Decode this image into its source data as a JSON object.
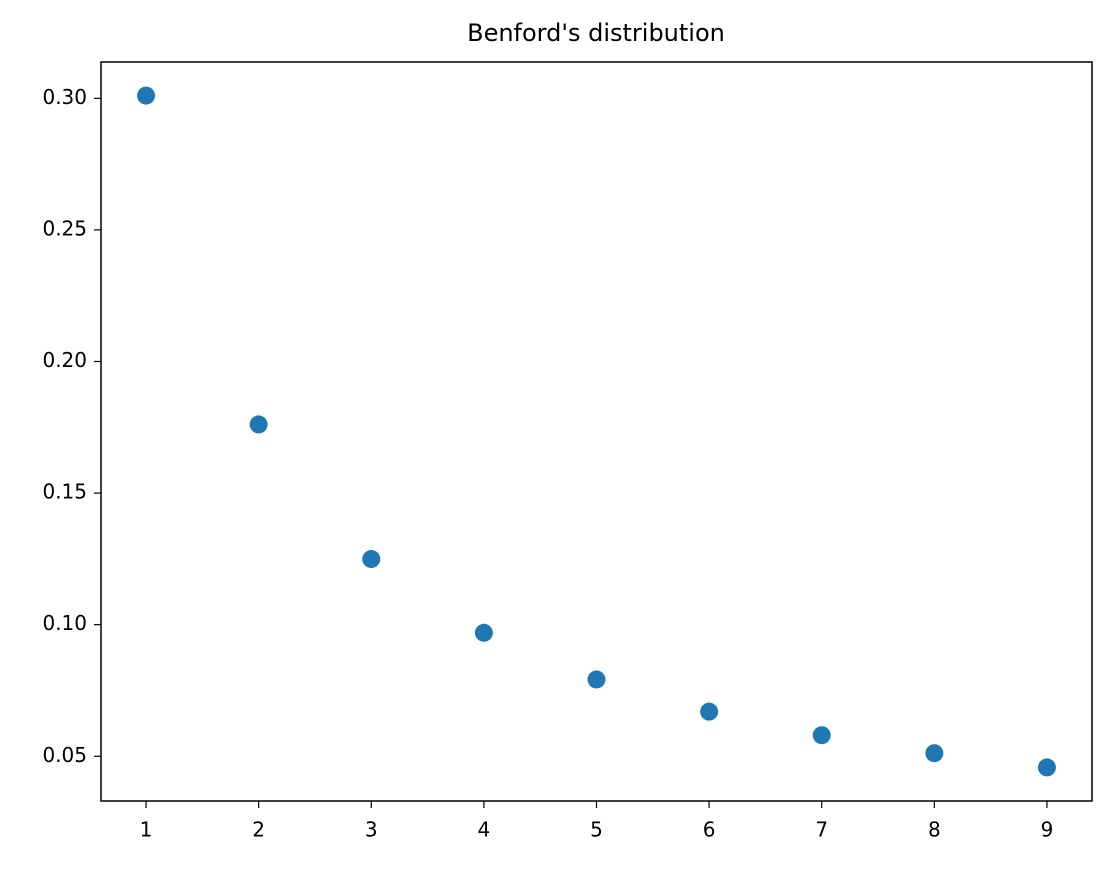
{
  "chart_data": {
    "type": "scatter",
    "title": "Benford's distribution",
    "x": [
      1,
      2,
      3,
      4,
      5,
      6,
      7,
      8,
      9
    ],
    "values": [
      0.30103,
      0.17609,
      0.12494,
      0.09691,
      0.07918,
      0.06695,
      0.05799,
      0.05115,
      0.04576
    ],
    "color": "#1f77b4",
    "xlim": [
      0.6,
      9.4
    ],
    "xticks": [
      1,
      2,
      3,
      4,
      5,
      6,
      7,
      8,
      9
    ],
    "ylim": [
      0.033,
      0.3138
    ],
    "yticks": [
      0.05,
      {
        "value": 0.1,
        "label": "0.10"
      },
      0.15,
      {
        "value": 0.2,
        "label": "0.20"
      },
      0.25,
      {
        "value": 0.3,
        "label": "0.30"
      }
    ]
  }
}
